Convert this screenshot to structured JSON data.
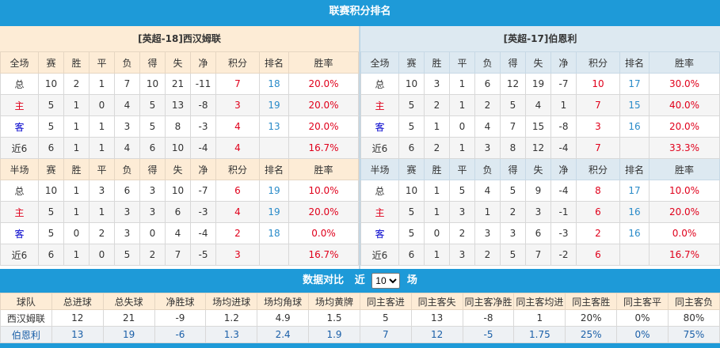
{
  "title": "联赛积分排名",
  "headers_full": [
    "全场",
    "赛",
    "胜",
    "平",
    "负",
    "得",
    "失",
    "净",
    "积分",
    "排名",
    "胜率"
  ],
  "headers_half": [
    "半场",
    "赛",
    "胜",
    "平",
    "负",
    "得",
    "失",
    "净",
    "积分",
    "排名",
    "胜率"
  ],
  "teams": [
    {
      "title": "[英超-18]西汉姆联",
      "full": [
        [
          "总",
          "10",
          "2",
          "1",
          "7",
          "10",
          "21",
          "-11",
          "7",
          "18",
          "20.0%"
        ],
        [
          "主",
          "5",
          "1",
          "0",
          "4",
          "5",
          "13",
          "-8",
          "3",
          "19",
          "20.0%"
        ],
        [
          "客",
          "5",
          "1",
          "1",
          "3",
          "5",
          "8",
          "-3",
          "4",
          "13",
          "20.0%"
        ],
        [
          "近6",
          "6",
          "1",
          "1",
          "4",
          "6",
          "10",
          "-4",
          "4",
          "",
          "16.7%"
        ]
      ],
      "half": [
        [
          "总",
          "10",
          "1",
          "3",
          "6",
          "3",
          "10",
          "-7",
          "6",
          "19",
          "10.0%"
        ],
        [
          "主",
          "5",
          "1",
          "1",
          "3",
          "3",
          "6",
          "-3",
          "4",
          "19",
          "20.0%"
        ],
        [
          "客",
          "5",
          "0",
          "2",
          "3",
          "0",
          "4",
          "-4",
          "2",
          "18",
          "0.0%"
        ],
        [
          "近6",
          "6",
          "1",
          "0",
          "5",
          "2",
          "7",
          "-5",
          "3",
          "",
          "16.7%"
        ]
      ]
    },
    {
      "title": "[英超-17]伯恩利",
      "full": [
        [
          "总",
          "10",
          "3",
          "1",
          "6",
          "12",
          "19",
          "-7",
          "10",
          "17",
          "30.0%"
        ],
        [
          "主",
          "5",
          "2",
          "1",
          "2",
          "5",
          "4",
          "1",
          "7",
          "15",
          "40.0%"
        ],
        [
          "客",
          "5",
          "1",
          "0",
          "4",
          "7",
          "15",
          "-8",
          "3",
          "16",
          "20.0%"
        ],
        [
          "近6",
          "6",
          "2",
          "1",
          "3",
          "8",
          "12",
          "-4",
          "7",
          "",
          "33.3%"
        ]
      ],
      "half": [
        [
          "总",
          "10",
          "1",
          "5",
          "4",
          "5",
          "9",
          "-4",
          "8",
          "17",
          "10.0%"
        ],
        [
          "主",
          "5",
          "1",
          "3",
          "1",
          "2",
          "3",
          "-1",
          "6",
          "16",
          "20.0%"
        ],
        [
          "客",
          "5",
          "0",
          "2",
          "3",
          "3",
          "6",
          "-3",
          "2",
          "16",
          "0.0%"
        ],
        [
          "近6",
          "6",
          "1",
          "3",
          "2",
          "5",
          "7",
          "-2",
          "6",
          "",
          "16.7%"
        ]
      ]
    }
  ],
  "compare": {
    "label_prefix": "数据对比",
    "recent": "近",
    "selected": "10",
    "suffix": "场",
    "headers": [
      "球队",
      "总进球",
      "总失球",
      "净胜球",
      "场均进球",
      "场均角球",
      "场均黄牌",
      "同主客进",
      "同主客失",
      "同主客净胜",
      "同主客均进",
      "同主客胜",
      "同主客平",
      "同主客负"
    ],
    "rows": [
      [
        "西汉姆联",
        "12",
        "21",
        "-9",
        "1.2",
        "4.9",
        "1.5",
        "5",
        "13",
        "-8",
        "1",
        "20%",
        "0%",
        "80%"
      ],
      [
        "伯恩利",
        "13",
        "19",
        "-6",
        "1.3",
        "2.4",
        "1.9",
        "7",
        "12",
        "-5",
        "1.75",
        "25%",
        "0%",
        "75%"
      ]
    ]
  },
  "colors": {
    "accent": "#1e9ad8",
    "home": "#e0001b",
    "away": "#0000cc",
    "points": "#e0001b",
    "rank": "#2a8bc9"
  }
}
